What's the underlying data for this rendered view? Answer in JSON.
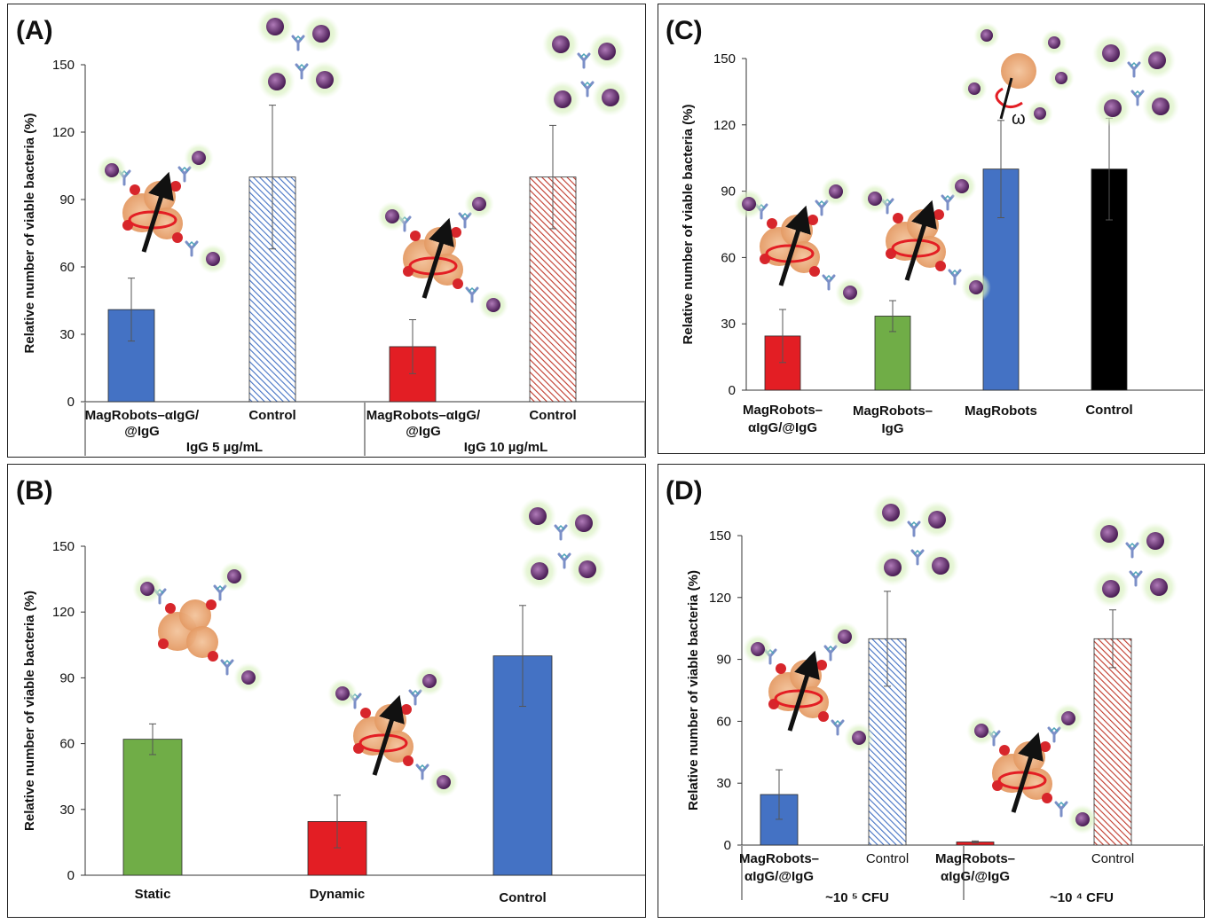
{
  "colors": {
    "blue": "#4472c4",
    "red": "#e31e24",
    "green": "#70ad47",
    "black": "#000000",
    "blue_hatch": "#4472c4",
    "red_hatch": "#c0392b"
  },
  "chart_data": [
    {
      "panel": "(A)",
      "type": "bar",
      "ylabel": "Relative number of viable bacteria (%)",
      "ylim": [
        0,
        150
      ],
      "yticks": [
        0,
        30,
        60,
        90,
        120,
        150
      ],
      "categories": [
        [
          "MagRobots–αIgG/",
          "@IgG"
        ],
        [
          "Control"
        ],
        [
          "MagRobots–αIgG/",
          "@IgG"
        ],
        [
          "Control"
        ]
      ],
      "groups": [
        "IgG 5 µg/mL",
        "IgG 10 µg/mL"
      ],
      "values": [
        41,
        100,
        24.5,
        100
      ],
      "errors": [
        14,
        32,
        12,
        23
      ],
      "fills": [
        "blue",
        "blue_hatch",
        "red",
        "red_hatch"
      ],
      "legend": "none"
    },
    {
      "panel": "(B)",
      "type": "bar",
      "ylabel": "Relative number of viable bacteria (%)",
      "ylim": [
        0,
        150
      ],
      "yticks": [
        0,
        30,
        60,
        90,
        120,
        150
      ],
      "categories": [
        [
          "Static"
        ],
        [
          "Dynamic"
        ],
        [
          "Control"
        ]
      ],
      "values": [
        62,
        24.5,
        100
      ],
      "errors": [
        7,
        12,
        23
      ],
      "fills": [
        "green",
        "red",
        "blue"
      ],
      "legend": "none"
    },
    {
      "panel": "(C)",
      "type": "bar",
      "ylabel": "Relative number of viable bacteria (%)",
      "ylim": [
        0,
        150
      ],
      "yticks": [
        0,
        30,
        60,
        90,
        120,
        150
      ],
      "categories": [
        [
          "MagRobots–",
          "αIgG/@IgG"
        ],
        [
          "MagRobots–",
          "IgG"
        ],
        [
          "MagRobots"
        ],
        [
          "Control"
        ]
      ],
      "values": [
        24.5,
        33.5,
        100,
        100
      ],
      "errors": [
        12,
        7,
        22,
        23
      ],
      "fills": [
        "red",
        "green",
        "blue",
        "black"
      ],
      "annotation": "ω",
      "legend": "none"
    },
    {
      "panel": "(D)",
      "type": "bar",
      "ylabel": "Relative number of viable bacteria (%)",
      "ylim": [
        0,
        150
      ],
      "yticks": [
        0,
        30,
        60,
        90,
        120,
        150
      ],
      "categories": [
        [
          "MagRobots–",
          "αIgG/@IgG"
        ],
        [
          "Control"
        ],
        [
          "MagRobots–",
          "αIgG/@IgG"
        ],
        [
          "Control"
        ]
      ],
      "groups": [
        "~10 ⁵ CFU",
        "~10 ⁴ CFU"
      ],
      "values": [
        24.5,
        100,
        1.5,
        100
      ],
      "errors": [
        12,
        23,
        0.5,
        14
      ],
      "fills": [
        "blue",
        "blue_hatch",
        "red",
        "red_hatch"
      ],
      "legend": "none"
    }
  ]
}
